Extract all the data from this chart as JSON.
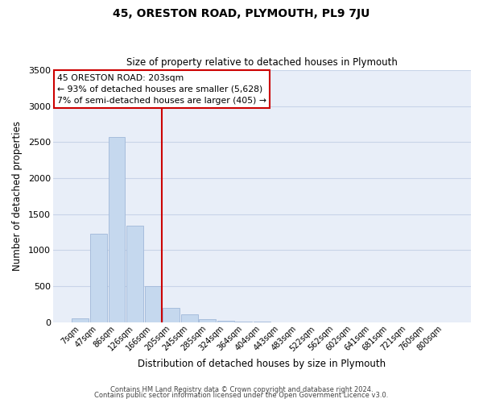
{
  "title": "45, ORESTON ROAD, PLYMOUTH, PL9 7JU",
  "subtitle": "Size of property relative to detached houses in Plymouth",
  "xlabel": "Distribution of detached houses by size in Plymouth",
  "ylabel": "Number of detached properties",
  "bar_labels": [
    "7sqm",
    "47sqm",
    "86sqm",
    "126sqm",
    "166sqm",
    "205sqm",
    "245sqm",
    "285sqm",
    "324sqm",
    "364sqm",
    "404sqm",
    "443sqm",
    "483sqm",
    "522sqm",
    "562sqm",
    "602sqm",
    "641sqm",
    "681sqm",
    "721sqm",
    "760sqm",
    "800sqm"
  ],
  "bar_values": [
    50,
    1230,
    2570,
    1340,
    500,
    200,
    110,
    45,
    20,
    10,
    5,
    3,
    2,
    1,
    1,
    0,
    0,
    0,
    0,
    0,
    0
  ],
  "bar_color": "#c5d8ee",
  "bar_edge_color": "#a0b8d8",
  "vline_color": "#cc0000",
  "annotation_box_text": "45 ORESTON ROAD: 203sqm\n← 93% of detached houses are smaller (5,628)\n7% of semi-detached houses are larger (405) →",
  "annotation_box_color": "#cc0000",
  "ylim": [
    0,
    3500
  ],
  "yticks": [
    0,
    500,
    1000,
    1500,
    2000,
    2500,
    3000,
    3500
  ],
  "grid_color": "#c8d4e8",
  "bg_color": "#e8eef8",
  "footer_line1": "Contains HM Land Registry data © Crown copyright and database right 2024.",
  "footer_line2": "Contains public sector information licensed under the Open Government Licence v3.0."
}
